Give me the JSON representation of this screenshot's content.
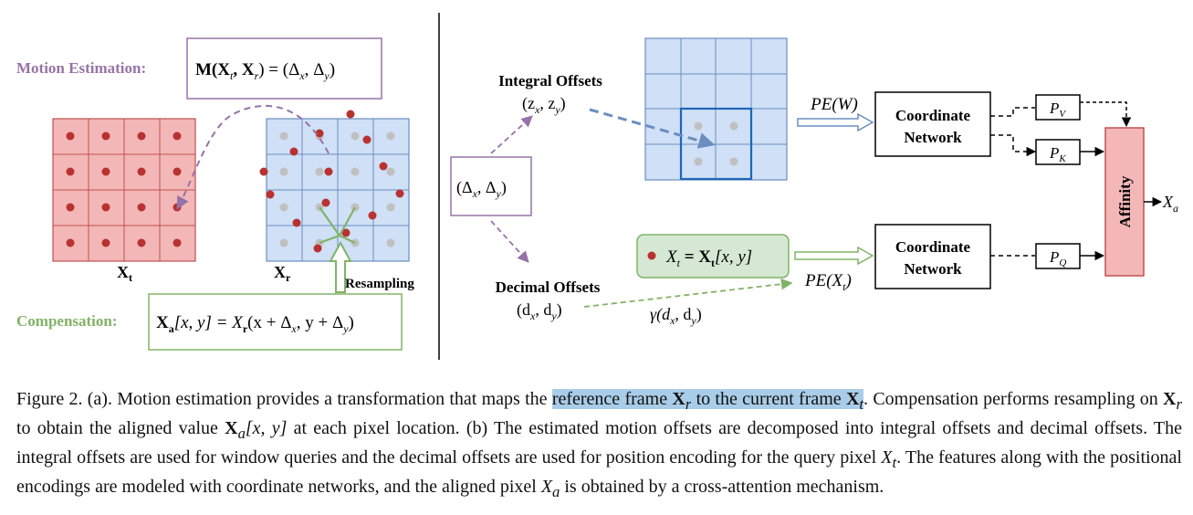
{
  "panel_a": {
    "motion_label": "Motion Estimation:",
    "motion_formula_prefix": "M(X",
    "motion_formula_t": "t",
    "motion_formula_mid": ", X",
    "motion_formula_r": "r",
    "motion_formula_suffix": ") = (Δ",
    "motion_formula_x": "x",
    "motion_formula_comma": ", Δ",
    "motion_formula_y": "y",
    "motion_formula_close": ")",
    "xt_label": "X",
    "xt_sub": "t",
    "xr_label": "X",
    "xr_sub": "r",
    "resampling_label": "Resampling",
    "comp_label": "Compensation:",
    "comp_formula": "X",
    "comp_formula_a": "a",
    "comp_formula_rest1": "[x, y] = X",
    "comp_formula_r": "r",
    "comp_formula_rest2": "(x + Δ",
    "comp_formula_x": "x",
    "comp_formula_rest3": ", y + Δ",
    "comp_formula_y": "y",
    "comp_formula_rest4": ")"
  },
  "panel_b": {
    "delta_box": "(Δx, Δy)",
    "delta_open": "(Δ",
    "delta_x": "x",
    "delta_mid": ", Δ",
    "delta_y": "y",
    "delta_close": ")",
    "integral_title": "Integral Offsets",
    "integral_vars": "(z",
    "integral_vars_x": "x",
    "integral_vars_mid": ", z",
    "integral_vars_y": "y",
    "integral_vars_close": ")",
    "decimal_title": "Decimal Offsets",
    "decimal_vars": "(d",
    "decimal_vars_x": "x",
    "decimal_vars_mid": ", d",
    "decimal_vars_y": "y",
    "decimal_vars_close": ")",
    "gamma_label": "γ(d",
    "gamma_x": "x",
    "gamma_mid": ", d",
    "gamma_y": "y",
    "gamma_close": ")",
    "query_text": "X",
    "query_t": "t",
    "query_eq": " = X",
    "query_t2": "t",
    "query_idx": "[x, y]",
    "pe_w": "PE(W)",
    "pe_x": "PE(X",
    "pe_x_t": "t",
    "pe_x_close": ")",
    "coord_net_top_1": "Coordinate",
    "coord_net_top_2": "Network",
    "coord_net_bot_1": "Coordinate",
    "coord_net_bot_2": "Network",
    "pv": "P",
    "pv_sub": "V",
    "pk": "P",
    "pk_sub": "K",
    "pq": "P",
    "pq_sub": "Q",
    "affinity": "Affinity",
    "output": "X",
    "output_sub": "a"
  },
  "caption": {
    "p1": "Figure 2. (a). Motion estimation provides a transformation that maps the ",
    "hl1": "reference frame ",
    "hl1_x": "X",
    "hl1_r": "r",
    "hl2": " to the current frame ",
    "hl2_x": "X",
    "hl2_t": "t",
    "p2": ". Compensation performs resampling on ",
    "p2_x": "X",
    "p2_r": "r",
    "p3": " to obtain the aligned value ",
    "p3_x": "X",
    "p3_a": "a",
    "p3_idx": "[x, y]",
    "p4": " at each pixel location. (b) The estimated motion offsets are decomposed into integral offsets and decimal offsets. The integral offsets are used for window queries and the decimal offsets are used for position encoding for the query pixel ",
    "p4_x": "X",
    "p4_t": "t",
    "p5": ". The features along with the positional encodings are modeled with coordinate networks, and the aligned pixel ",
    "p5_x": "X",
    "p5_a": "a",
    "p6": " is obtained by a cross-attention mechanism."
  },
  "colors": {
    "red_grid_fill": "#f3b7b7",
    "red_grid_stroke": "#c05050",
    "blue_grid_fill": "#cfe0f7",
    "blue_grid_stroke": "#6c8ebf",
    "purple": "#9673a6",
    "green": "#82b366",
    "red_dot": "#b83232",
    "gray_dot": "#c0c0c0",
    "highlight": "#a9cde8"
  }
}
